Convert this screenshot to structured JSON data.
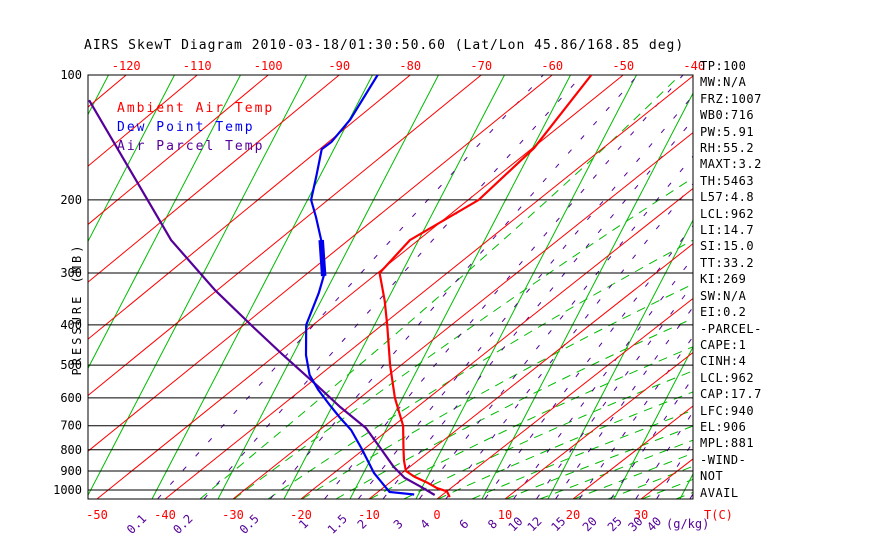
{
  "title": "AIRS SkewT Diagram 2010-03-18/01:30:50.60 (Lat/Lon 45.86/168.85 deg)",
  "colors": {
    "frame": "#000000",
    "isotherm": "#ff0000",
    "adiabat_solid": "#00bb00",
    "adiabat_moist": "#00bb00",
    "mixing_ratio": "#550099",
    "ambient_curve": "#ff0000",
    "dewpoint_curve": "#0000ee",
    "parcel_curve": "#550099",
    "title_text": "#000000"
  },
  "legend": {
    "ambient": "Ambient Air Temp",
    "dewpoint": "Dew Point Temp",
    "parcel": "Air Parcel Temp"
  },
  "axes": {
    "pressure_label": "PRESSURE (MB)",
    "pressure_ticks": [
      100,
      200,
      300,
      400,
      500,
      600,
      700,
      800,
      900,
      1000
    ],
    "top_temp_ticks": [
      -120,
      -110,
      -100,
      -90,
      -80,
      -70,
      -60,
      -50,
      -40
    ],
    "bottom_temp_ticks": [
      -50,
      -40,
      -30,
      -20,
      -10,
      0,
      10,
      20,
      30
    ],
    "temp_unit_label": "T(C)",
    "mixing_unit_label": "(g/kg)",
    "mixing_overlap_label": "40",
    "mixing_ratio_labels": [
      "0.1",
      "0.2",
      "0.5",
      "1",
      "1.5",
      "2",
      "3",
      "4",
      "6",
      "8",
      "10",
      "12",
      "15",
      "20",
      "25",
      "30"
    ]
  },
  "stats": [
    "TP:100",
    "MW:N/A",
    "FRZ:1007",
    "WB0:716",
    "PW:5.91",
    "RH:55.2",
    "MAXT:3.2",
    "TH:5463",
    "L57:4.8",
    "LCL:962",
    "LI:14.7",
    "SI:15.0",
    "TT:33.2",
    "KI:269",
    "SW:N/A",
    "EI:0.2",
    "-PARCEL-",
    "CAPE:1",
    "CINH:4",
    "LCL:962",
    "CAP:17.7",
    "LFC:940",
    "EL:906",
    "MPL:881",
    "-WIND-",
    "NOT",
    "AVAIL"
  ],
  "chart_data": {
    "type": "line",
    "title": "AIRS SkewT Diagram 2010-03-18/01:30:50.60 (Lat/Lon 45.86/168.85 deg)",
    "x_axis": {
      "label": "T(C)",
      "bottom_tick_range": [
        -50,
        30
      ],
      "top_tick_range": [
        -120,
        -40
      ],
      "isotherm_step_c": 10
    },
    "y_axis": {
      "label": "PRESSURE (MB)",
      "range_mb": [
        100,
        1050
      ],
      "scale": "log"
    },
    "legend_position": "top-left-inside",
    "grid": "skew-t: red isotherms, green solid dry adiabats, green dashed moist adiabats, purple dashed mixing-ratio lines, black horizontal isobars",
    "mixing_ratio_lines_g_per_kg": [
      0.1,
      0.2,
      0.5,
      1,
      1.5,
      2,
      3,
      4,
      6,
      8,
      10,
      12,
      15,
      20,
      25,
      30,
      40
    ],
    "series": [
      {
        "name": "Ambient Air Temp",
        "color": "#ff0000",
        "points_p_t": [
          [
            1040,
            1.5
          ],
          [
            1007,
            0
          ],
          [
            990,
            -2
          ],
          [
            960,
            -4.5
          ],
          [
            930,
            -7.4
          ],
          [
            900,
            -9.8
          ],
          [
            850,
            -12
          ],
          [
            800,
            -14.1
          ],
          [
            700,
            -18.6
          ],
          [
            600,
            -24.9
          ],
          [
            500,
            -31.6
          ],
          [
            400,
            -39.3
          ],
          [
            350,
            -44
          ],
          [
            300,
            -49.7
          ],
          [
            250,
            -51.2
          ],
          [
            200,
            -48.5
          ],
          [
            150,
            -49.8
          ],
          [
            100,
            -54.5
          ]
        ]
      },
      {
        "name": "Dew Point Temp",
        "color": "#0000ee",
        "points_p_t": [
          [
            1025,
            -4.2
          ],
          [
            1011,
            -8.3
          ],
          [
            910,
            -14.1
          ],
          [
            792,
            -20.6
          ],
          [
            717,
            -25.4
          ],
          [
            667,
            -29.5
          ],
          [
            624,
            -33.1
          ],
          [
            574,
            -37.5
          ],
          [
            528,
            -41.5
          ],
          [
            473,
            -45.6
          ],
          [
            400,
            -51.0
          ],
          [
            335,
            -54.9
          ],
          [
            305,
            -57.2
          ],
          [
            250,
            -63.9
          ],
          [
            220,
            -68.7
          ],
          [
            200,
            -72.4
          ],
          [
            174,
            -76.0
          ],
          [
            151,
            -79.7
          ],
          [
            145,
            -79.6
          ],
          [
            128,
            -80.8
          ],
          [
            100,
            -84.6
          ]
        ],
        "thick_segment_p_range": [
          248,
          312
        ]
      },
      {
        "name": "Air Parcel Temp",
        "color": "#550099",
        "points_p_t": [
          [
            1028,
            -1.1
          ],
          [
            983,
            -4.6
          ],
          [
            935,
            -8.7
          ],
          [
            879,
            -12.4
          ],
          [
            800,
            -17.3
          ],
          [
            709,
            -23.6
          ],
          [
            631,
            -31.2
          ],
          [
            559,
            -38.6
          ],
          [
            470,
            -49.3
          ],
          [
            406,
            -58.1
          ],
          [
            330,
            -70.3
          ],
          [
            250,
            -85.4
          ],
          [
            115,
            -121.0
          ]
        ]
      }
    ]
  }
}
